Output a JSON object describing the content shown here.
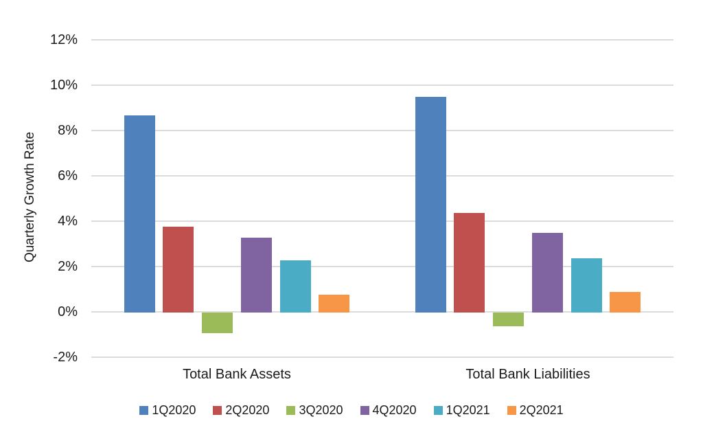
{
  "chart_data": {
    "type": "bar",
    "categories": [
      "Total Bank Assets",
      "Total Bank Liabilities"
    ],
    "series": [
      {
        "name": "1Q2020",
        "color": "#4F81BD",
        "values": [
          8.7,
          9.5
        ]
      },
      {
        "name": "2Q2020",
        "color": "#C0504D",
        "values": [
          3.8,
          4.4
        ]
      },
      {
        "name": "3Q2020",
        "color": "#9BBB59",
        "values": [
          -0.9,
          -0.6
        ]
      },
      {
        "name": "4Q2020",
        "color": "#8064A2",
        "values": [
          3.3,
          3.5
        ]
      },
      {
        "name": "1Q2021",
        "color": "#4BACC6",
        "values": [
          2.3,
          2.4
        ]
      },
      {
        "name": "2Q2021",
        "color": "#F79646",
        "values": [
          0.8,
          0.9
        ]
      }
    ],
    "title": "",
    "xlabel": "",
    "ylabel": "Quarterly Growth Rate",
    "ylim": [
      -2,
      12
    ],
    "yticks": [
      12,
      10,
      8,
      6,
      4,
      2,
      0,
      -2
    ],
    "ytick_labels": [
      "12%",
      "10%",
      "8%",
      "6%",
      "4%",
      "2%",
      "0%",
      "-2%"
    ],
    "grid": true,
    "legend_position": "bottom",
    "gridline_color": "#dcdcdc",
    "background_color": "#ffffff"
  }
}
